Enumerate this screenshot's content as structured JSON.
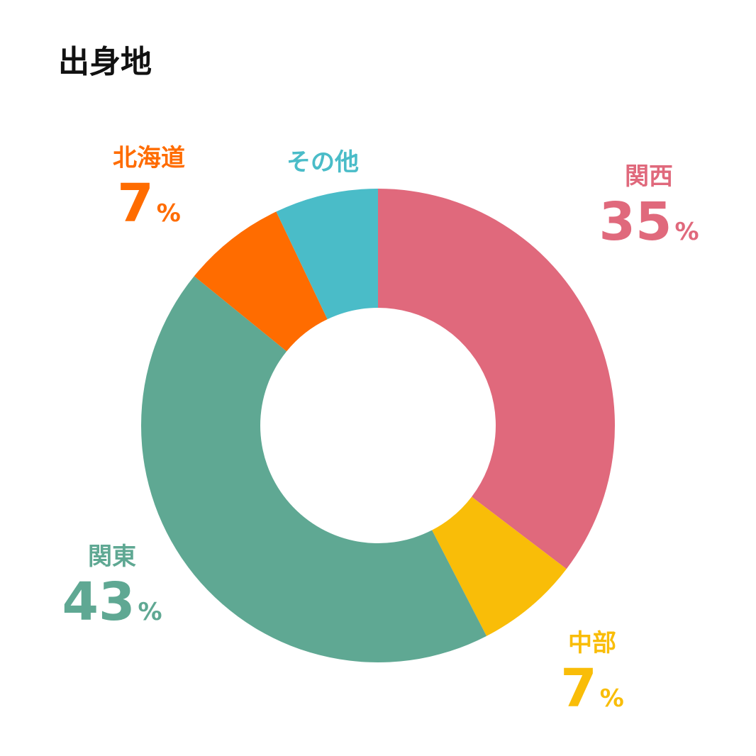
{
  "chart_data": {
    "type": "pie",
    "style": "donut",
    "title": "出身地",
    "unit": "%",
    "categories": [
      "関西",
      "中部",
      "関東",
      "北海道",
      "その他"
    ],
    "values": [
      35,
      7,
      43,
      7,
      7
    ],
    "colors": [
      "#e0697c",
      "#f9bd08",
      "#5fa893",
      "#ff6c00",
      "#4abcc8"
    ],
    "start_angle": "12 o'clock",
    "direction": "clockwise"
  }
}
